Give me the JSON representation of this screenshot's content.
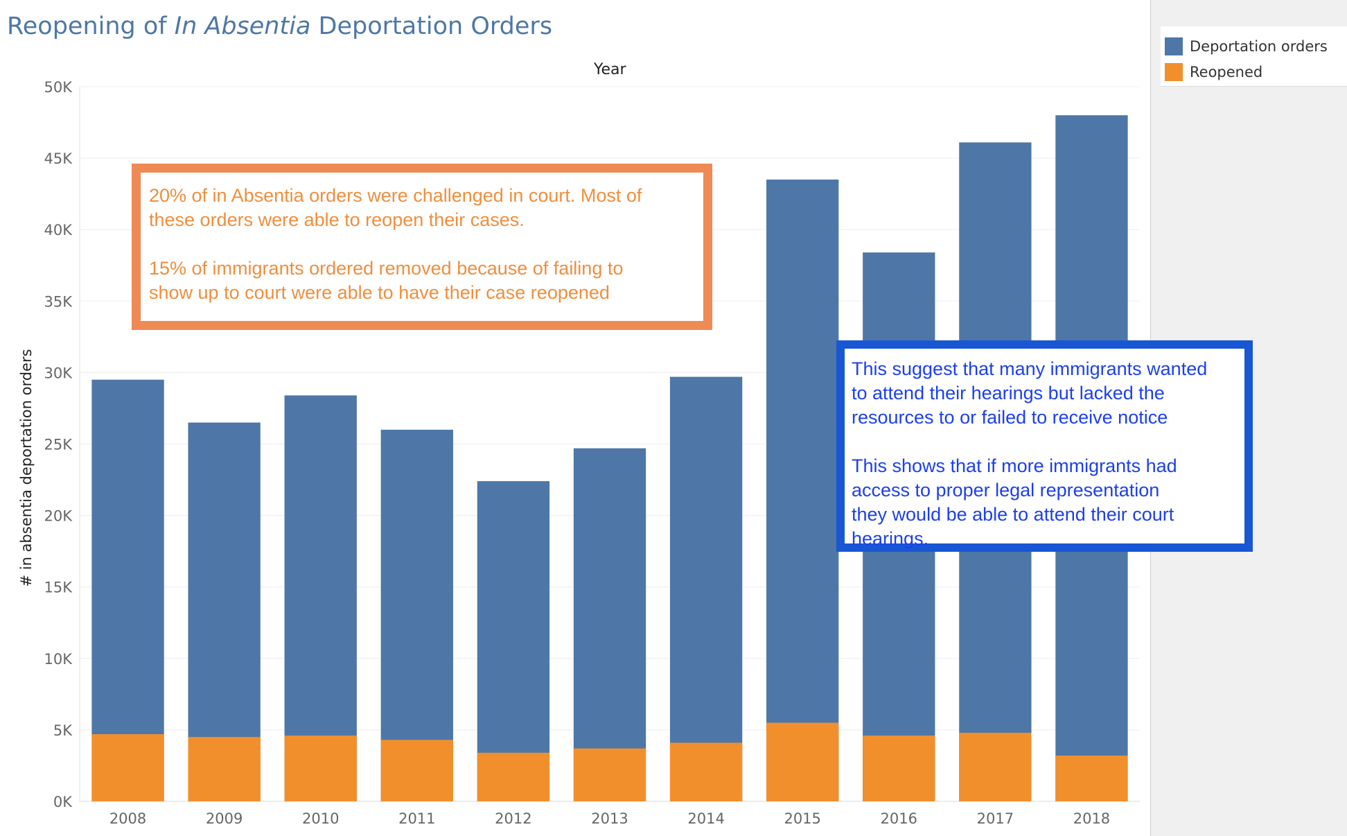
{
  "title": {
    "prefix": "Reopening of ",
    "italic": "In Absentia",
    "suffix": "  Deportation Orders"
  },
  "colors": {
    "deportation_orders": "#4e77a7",
    "reopened": "#f28f2d",
    "title": "#4e77a7",
    "orange_note": "#ef8a55",
    "blue_note": "#1856d4"
  },
  "legend": {
    "items": [
      {
        "label": "Deportation orders",
        "color": "#4e77a7"
      },
      {
        "label": "Reopened",
        "color": "#f28f2d"
      }
    ]
  },
  "annotations": {
    "orange": {
      "line1": " 20% of in Absentia orders were challenged in court. Most of",
      "line2": "these orders were able to reopen their cases.",
      "line3": "15% of immigrants ordered removed because of failing to",
      "line4": "show up to court were able to have their case reopened"
    },
    "blue": {
      "line1": " This suggest that many immigrants wanted",
      "line2": "to attend their hearings but lacked the",
      "line3": "resources to or failed to receive notice",
      "line4": "This shows that if more immigrants had",
      "line5": "access to proper  legal representation",
      "line6": "they would  be able to attend their court",
      "line7": "hearings."
    }
  },
  "chart_data": {
    "type": "bar",
    "stacked": false,
    "xlabel": "Year",
    "ylabel": "# in absentia deportation orders",
    "categories": [
      "2008",
      "2009",
      "2010",
      "2011",
      "2012",
      "2013",
      "2014",
      "2015",
      "2016",
      "2017",
      "2018"
    ],
    "series": [
      {
        "name": "Deportation orders",
        "values": [
          29500,
          26500,
          28400,
          26000,
          22400,
          24700,
          29700,
          43500,
          38400,
          46100,
          48000
        ]
      },
      {
        "name": "Reopened",
        "values": [
          4700,
          4500,
          4600,
          4300,
          3400,
          3700,
          4100,
          5500,
          4600,
          4800,
          3200
        ]
      }
    ],
    "ylim": [
      0,
      50000
    ],
    "yticks": [
      0,
      5000,
      10000,
      15000,
      20000,
      25000,
      30000,
      35000,
      40000,
      45000,
      50000
    ],
    "ytick_labels": [
      "0K",
      "5K",
      "10K",
      "15K",
      "20K",
      "25K",
      "30K",
      "35K",
      "40K",
      "45K",
      "50K"
    ],
    "grid": true,
    "legend_position": "top-right"
  }
}
